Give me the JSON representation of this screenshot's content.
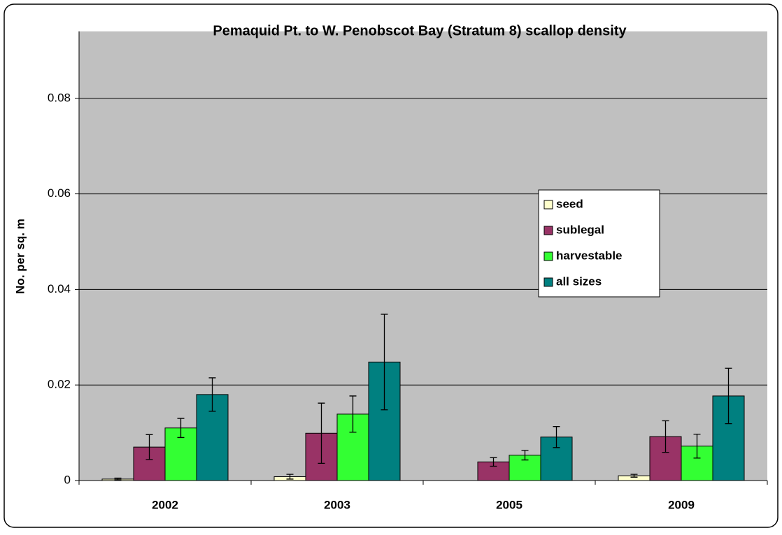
{
  "chart_data": {
    "type": "bar",
    "title": "Pemaquid Pt. to W. Penobscot Bay (Stratum 8) scallop density",
    "y_label": "No. per sq. m",
    "categories": [
      "2002",
      "2003",
      "2005",
      "2009"
    ],
    "series": [
      {
        "name": "seed",
        "color": "#ffffcc",
        "values": [
          0.0003,
          0.0008,
          0,
          0.001
        ],
        "errors": [
          0.0002,
          0.0005,
          0,
          0.0003
        ]
      },
      {
        "name": "sublegal",
        "color": "#993366",
        "values": [
          0.007,
          0.0099,
          0.0039,
          0.0092
        ],
        "errors": [
          0.0026,
          0.0063,
          0.0009,
          0.0033
        ]
      },
      {
        "name": "harvestable",
        "color": "#33ff33",
        "values": [
          0.011,
          0.0139,
          0.0053,
          0.0072
        ],
        "errors": [
          0.002,
          0.0038,
          0.001,
          0.0025
        ]
      },
      {
        "name": "all sizes",
        "color": "#008080",
        "values": [
          0.018,
          0.0248,
          0.0091,
          0.0177
        ],
        "errors": [
          0.0035,
          0.01,
          0.0022,
          0.0058
        ]
      }
    ],
    "ylim": [
      0,
      0.094
    ],
    "yticks": [
      0,
      0.02,
      0.04,
      0.06,
      0.08
    ],
    "grid": true,
    "legend": "right"
  }
}
